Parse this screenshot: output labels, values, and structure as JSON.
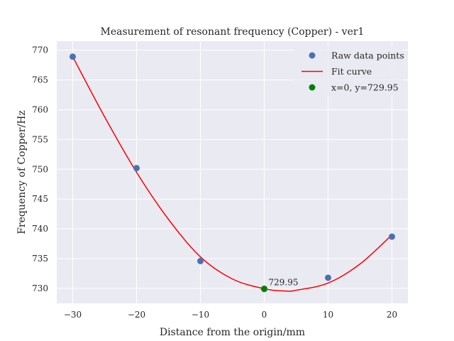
{
  "chart_data": {
    "type": "scatter",
    "title": "Measurement of resonant frequency (Copper) - ver1",
    "xlabel": "Distance from the origin/mm",
    "ylabel": "Frequency of Copper/Hz",
    "xlim": [
      -32.5,
      22.5
    ],
    "ylim": [
      727.5,
      771.5
    ],
    "xticks": [
      -30,
      -20,
      -10,
      0,
      10,
      20
    ],
    "xtick_labels": [
      "−30",
      "−20",
      "−10",
      "0",
      "10",
      "20"
    ],
    "yticks": [
      730,
      735,
      740,
      745,
      750,
      755,
      760,
      765,
      770
    ],
    "ytick_labels": [
      "730",
      "735",
      "740",
      "745",
      "750",
      "755",
      "760",
      "765",
      "770"
    ],
    "grid": true,
    "legend_position": "top-right",
    "series": [
      {
        "name": "Raw data points",
        "kind": "scatter",
        "color": "#4c72b0",
        "x": [
          -30,
          -20,
          -10,
          0,
          10,
          20
        ],
        "y": [
          768.9,
          750.2,
          734.6,
          729.9,
          731.8,
          738.7
        ]
      },
      {
        "name": "Fit curve",
        "kind": "line",
        "color": "#ff0000",
        "x": [
          -30,
          -25,
          -20,
          -15,
          -10,
          -5,
          0,
          3.5,
          5,
          10,
          15,
          20
        ],
        "y": [
          768.9,
          758.8,
          749.5,
          741.6,
          735.3,
          731.6,
          729.95,
          729.55,
          729.7,
          730.9,
          734.1,
          739.0
        ]
      },
      {
        "name": "x=0, y=729.95",
        "kind": "scatter",
        "color": "#008000",
        "x": [
          0
        ],
        "y": [
          729.95
        ]
      }
    ],
    "annotations": [
      {
        "text": "729.95",
        "x": 0,
        "y": 729.95
      }
    ]
  }
}
